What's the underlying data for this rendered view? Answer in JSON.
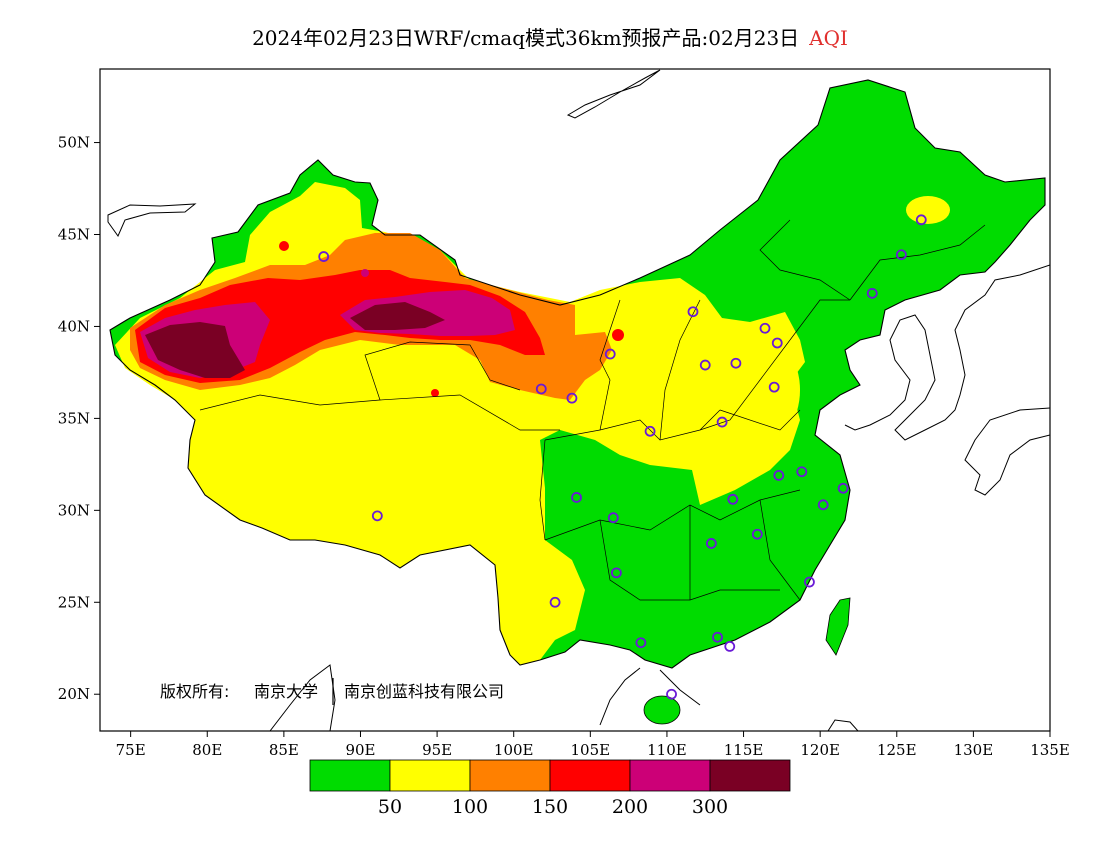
{
  "title": {
    "main": "2024年02月23日WRF/cmaq模式36km预报产品:02月23日",
    "variable": "AQI",
    "variable_color": "#e0302e"
  },
  "credit": {
    "owner_prefix": "版权所有:",
    "owner_1": "南京大学",
    "owner_2": "南京创蓝科技有限公司"
  },
  "axes": {
    "lon_ticks": [
      "75E",
      "80E",
      "85E",
      "90E",
      "95E",
      "100E",
      "105E",
      "110E",
      "115E",
      "120E",
      "125E",
      "130E",
      "135E"
    ],
    "lat_ticks": [
      "20N",
      "25N",
      "30N",
      "35N",
      "40N",
      "45N",
      "50N"
    ],
    "lon_range": [
      73,
      135
    ],
    "lat_range": [
      18,
      54
    ]
  },
  "colorbar": {
    "colors": [
      "#00dc00",
      "#ffff00",
      "#ff8000",
      "#ff0000",
      "#cc0077",
      "#7a0024"
    ],
    "labels": [
      "50",
      "100",
      "150",
      "200",
      "300"
    ]
  },
  "stations": [
    [
      116.4,
      39.9
    ],
    [
      121.5,
      31.2
    ],
    [
      113.3,
      23.1
    ],
    [
      114.1,
      22.6
    ],
    [
      104.1,
      30.7
    ],
    [
      106.5,
      29.6
    ],
    [
      108.9,
      34.3
    ],
    [
      103.8,
      36.1
    ],
    [
      101.8,
      36.6
    ],
    [
      106.3,
      38.5
    ],
    [
      111.7,
      40.8
    ],
    [
      112.5,
      37.9
    ],
    [
      114.5,
      38.0
    ],
    [
      117.2,
      39.1
    ],
    [
      117.0,
      36.7
    ],
    [
      113.6,
      34.8
    ],
    [
      114.3,
      30.6
    ],
    [
      112.9,
      28.2
    ],
    [
      115.9,
      28.7
    ],
    [
      118.8,
      32.1
    ],
    [
      120.2,
      30.3
    ],
    [
      117.3,
      31.9
    ],
    [
      119.3,
      26.1
    ],
    [
      106.7,
      26.6
    ],
    [
      102.7,
      25.0
    ],
    [
      108.3,
      22.8
    ],
    [
      110.3,
      20.0
    ],
    [
      91.1,
      29.7
    ],
    [
      87.6,
      43.8
    ],
    [
      123.4,
      41.8
    ],
    [
      125.3,
      43.9
    ],
    [
      126.6,
      45.8
    ]
  ]
}
